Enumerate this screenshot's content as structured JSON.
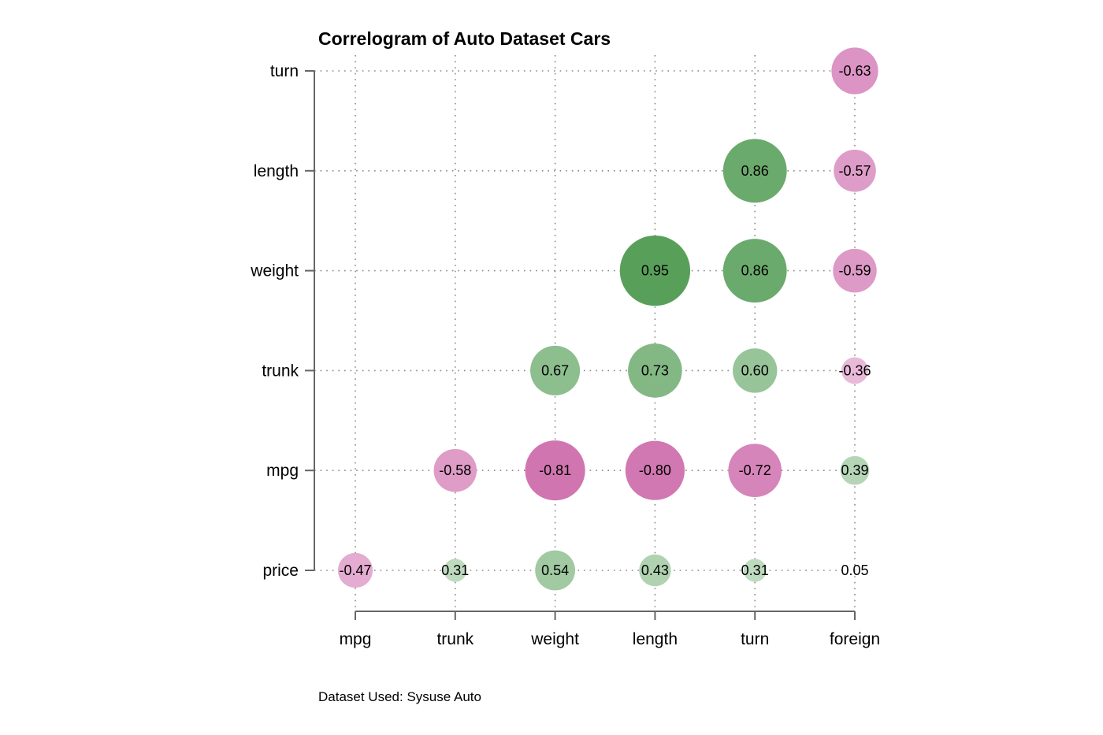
{
  "chart_data": {
    "type": "bubble-correlogram",
    "title": "Correlogram of Auto Dataset Cars",
    "note": "Dataset Used: Sysuse Auto",
    "x_categories": [
      "mpg",
      "trunk",
      "weight",
      "length",
      "turn",
      "foreign"
    ],
    "y_categories": [
      "price",
      "mpg",
      "trunk",
      "weight",
      "length",
      "turn"
    ],
    "cells": [
      {
        "x": "mpg",
        "y": "price",
        "value": -0.47,
        "label": "-0.47"
      },
      {
        "x": "trunk",
        "y": "price",
        "value": 0.31,
        "label": "0.31"
      },
      {
        "x": "weight",
        "y": "price",
        "value": 0.54,
        "label": "0.54"
      },
      {
        "x": "length",
        "y": "price",
        "value": 0.43,
        "label": "0.43"
      },
      {
        "x": "turn",
        "y": "price",
        "value": 0.31,
        "label": "0.31"
      },
      {
        "x": "foreign",
        "y": "price",
        "value": 0.05,
        "label": "0.05"
      },
      {
        "x": "trunk",
        "y": "mpg",
        "value": -0.58,
        "label": "-0.58"
      },
      {
        "x": "weight",
        "y": "mpg",
        "value": -0.81,
        "label": "-0.81"
      },
      {
        "x": "length",
        "y": "mpg",
        "value": -0.8,
        "label": "-0.80"
      },
      {
        "x": "turn",
        "y": "mpg",
        "value": -0.72,
        "label": "-0.72"
      },
      {
        "x": "foreign",
        "y": "mpg",
        "value": 0.39,
        "label": "0.39"
      },
      {
        "x": "weight",
        "y": "trunk",
        "value": 0.67,
        "label": "0.67"
      },
      {
        "x": "length",
        "y": "trunk",
        "value": 0.73,
        "label": "0.73"
      },
      {
        "x": "turn",
        "y": "trunk",
        "value": 0.6,
        "label": "0.60"
      },
      {
        "x": "foreign",
        "y": "trunk",
        "value": -0.36,
        "label": "-0.36"
      },
      {
        "x": "length",
        "y": "weight",
        "value": 0.95,
        "label": "0.95"
      },
      {
        "x": "turn",
        "y": "weight",
        "value": 0.86,
        "label": "0.86"
      },
      {
        "x": "foreign",
        "y": "weight",
        "value": -0.59,
        "label": "-0.59"
      },
      {
        "x": "turn",
        "y": "length",
        "value": 0.86,
        "label": "0.86"
      },
      {
        "x": "foreign",
        "y": "length",
        "value": -0.57,
        "label": "-0.57"
      },
      {
        "x": "foreign",
        "y": "turn",
        "value": -0.63,
        "label": "-0.63"
      }
    ],
    "colors": {
      "positive": "#4e9a50",
      "negative": "#c44f9c",
      "grid": "#888888",
      "axis": "#666666"
    },
    "grid": "dotted",
    "legend": "none"
  }
}
